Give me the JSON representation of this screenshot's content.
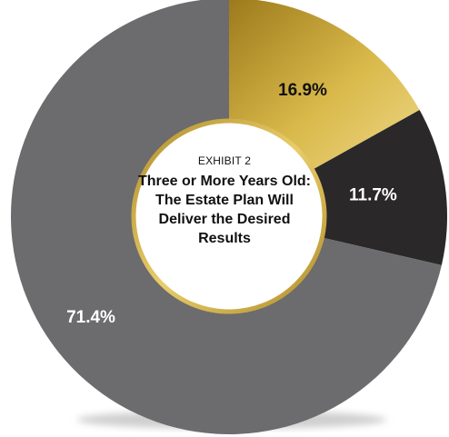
{
  "chart_data": {
    "type": "pie",
    "subtitle": "EXHIBIT 2",
    "title": "Three or More Years Old: The Estate Plan Will Deliver the Desired Results",
    "slices": [
      {
        "label": "16.9%",
        "value": 16.9,
        "color": "#c8a531"
      },
      {
        "label": "11.7%",
        "value": 11.7,
        "color": "#2a2829"
      },
      {
        "label": "71.4%",
        "value": 71.4,
        "color": "#6c6b6d"
      }
    ],
    "label_colors": [
      "#111111",
      "#ffffff",
      "#ffffff"
    ],
    "center_ring_color": "#d1ad3c",
    "donut": true
  }
}
